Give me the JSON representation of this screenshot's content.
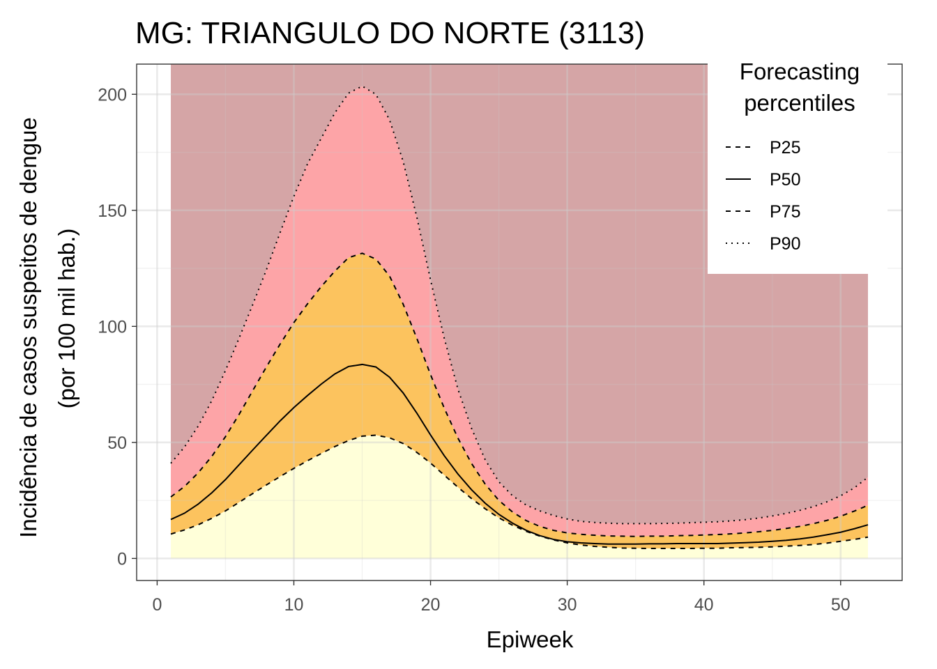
{
  "chart_data": {
    "type": "area",
    "title": "MG: TRIANGULO DO NORTE (3113)",
    "xlabel": "Epiweek",
    "ylabel": [
      "Incidência de casos suspeitos de dengue",
      "(por 100 mil hab.)"
    ],
    "xlim": [
      -1.5,
      54.5
    ],
    "ylim": [
      -9.5,
      213
    ],
    "x_ticks": [
      0,
      10,
      20,
      30,
      40,
      50
    ],
    "y_ticks": [
      0,
      50,
      100,
      150,
      200
    ],
    "grid": true,
    "legend": {
      "title": [
        "Forecasting",
        "percentiles"
      ],
      "placement": "top-right (inside)",
      "items": [
        {
          "label": "P25",
          "linetype": "dashed"
        },
        {
          "label": "P50",
          "linetype": "solid"
        },
        {
          "label": "P75",
          "linetype": "dashed"
        },
        {
          "label": "P90",
          "linetype": "dotted"
        }
      ]
    },
    "band_colors": {
      "below_p25": "#ffffd9",
      "p25_p75": "#fcc35e",
      "p75_p90": "#fda4a7",
      "above_p90": "#d5a5a6"
    },
    "x": [
      1,
      2,
      3,
      4,
      5,
      6,
      7,
      8,
      9,
      10,
      11,
      12,
      13,
      14,
      15,
      16,
      17,
      18,
      19,
      20,
      21,
      22,
      23,
      24,
      25,
      26,
      27,
      28,
      29,
      30,
      31,
      32,
      33,
      34,
      35,
      36,
      37,
      38,
      39,
      40,
      41,
      42,
      43,
      44,
      45,
      46,
      47,
      48,
      49,
      50,
      51,
      52
    ],
    "series": [
      {
        "name": "P25",
        "values": [
          10.5,
          12.3,
          14.5,
          17.3,
          20.5,
          24.2,
          28.0,
          31.7,
          35.3,
          38.8,
          42.1,
          45.2,
          48.2,
          50.8,
          52.7,
          53.1,
          52.0,
          49.5,
          45.7,
          41.1,
          35.9,
          30.7,
          25.8,
          21.4,
          17.5,
          14.3,
          11.7,
          9.6,
          8.0,
          6.7,
          5.8,
          5.2,
          4.8,
          4.5,
          4.4,
          4.3,
          4.3,
          4.3,
          4.3,
          4.4,
          4.4,
          4.6,
          4.7,
          4.8,
          5.0,
          5.3,
          5.6,
          6.0,
          6.6,
          7.4,
          8.2,
          9.2
        ]
      },
      {
        "name": "P50",
        "values": [
          16.8,
          19.5,
          23.4,
          28.3,
          34.0,
          40.4,
          46.8,
          53.1,
          59.3,
          65.0,
          70.2,
          75.1,
          79.5,
          82.7,
          83.6,
          82.5,
          78.1,
          71.3,
          62.6,
          53.2,
          44.3,
          36.4,
          29.6,
          23.8,
          19.0,
          15.2,
          12.1,
          9.8,
          8.2,
          7.2,
          6.7,
          6.4,
          6.2,
          6.2,
          6.2,
          6.3,
          6.3,
          6.4,
          6.4,
          6.4,
          6.4,
          6.6,
          6.8,
          7.0,
          7.4,
          7.8,
          8.4,
          9.2,
          10.2,
          11.3,
          12.8,
          14.5
        ]
      },
      {
        "name": "P75",
        "values": [
          26.5,
          31.0,
          36.9,
          44.0,
          52.5,
          62.1,
          72.4,
          82.6,
          92.4,
          101.6,
          109.7,
          117.1,
          123.8,
          129.6,
          131.5,
          129.0,
          121.7,
          109.5,
          94.8,
          79.2,
          64.8,
          51.9,
          40.9,
          32.0,
          25.0,
          20.0,
          16.3,
          13.8,
          12.1,
          11.0,
          10.4,
          10.0,
          9.7,
          9.6,
          9.5,
          9.6,
          9.6,
          9.8,
          9.9,
          10.1,
          10.3,
          10.6,
          11.0,
          11.5,
          12.1,
          12.9,
          13.8,
          15.0,
          16.4,
          18.2,
          20.4,
          22.9
        ]
      },
      {
        "name": "P90",
        "values": [
          41.0,
          48.0,
          57.0,
          68.0,
          81.0,
          95.0,
          109.5,
          124.5,
          140.5,
          156.0,
          170.0,
          181.0,
          192.0,
          200.5,
          203.5,
          200.0,
          189.0,
          171.0,
          147.0,
          120.0,
          95.0,
          73.0,
          56.0,
          42.5,
          33.0,
          27.0,
          23.0,
          20.5,
          18.5,
          17.0,
          16.0,
          15.5,
          15.2,
          15.0,
          15.0,
          15.0,
          15.1,
          15.2,
          15.4,
          15.6,
          15.8,
          16.2,
          16.7,
          17.4,
          18.3,
          19.4,
          20.7,
          22.3,
          24.4,
          27.0,
          30.4,
          35.0
        ]
      }
    ]
  }
}
